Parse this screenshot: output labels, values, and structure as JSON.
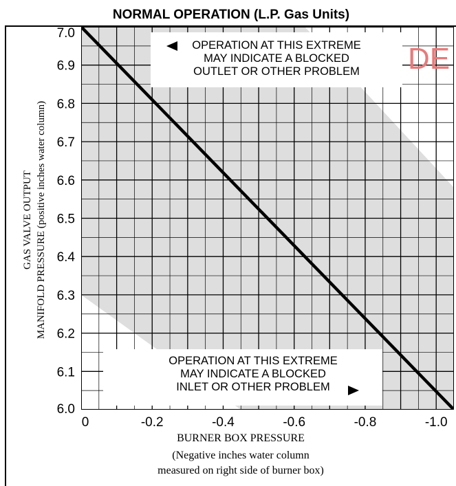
{
  "chart_data": {
    "type": "line",
    "title": "NORMAL OPERATION (L.P. Gas Units)",
    "xlabel": "BURNER BOX PRESSURE",
    "xlabel_sub": [
      "(Negative inches water column",
      "measured on right side of burner box)"
    ],
    "ylabel": [
      "GAS VALVE OUTPUT",
      "MANIFOLD PRESSURE (positive inches water column)"
    ],
    "xlim": [
      0,
      -1.05
    ],
    "ylim": [
      6.0,
      7.0
    ],
    "x_ticks": [
      "0",
      "-0.2",
      "-0.4",
      "-0.6",
      "-0.8",
      "-1.0"
    ],
    "x_tick_values": [
      0,
      -0.2,
      -0.4,
      -0.6,
      -0.8,
      -1.0
    ],
    "y_ticks": [
      "7.0",
      "6.9",
      "6.8",
      "6.7",
      "6.6",
      "6.5",
      "6.4",
      "6.3",
      "6.2",
      "6.1",
      "6.0"
    ],
    "y_tick_values": [
      7.0,
      6.9,
      6.8,
      6.7,
      6.6,
      6.5,
      6.4,
      6.3,
      6.2,
      6.1,
      6.0
    ],
    "grid": true,
    "series": [
      {
        "x": [
          0,
          -1.05
        ],
        "y": [
          7.0,
          6.0
        ]
      }
    ],
    "normal_band": {
      "upper": {
        "x": [
          0,
          -0.63,
          -1.05
        ],
        "y": [
          7.0,
          7.0,
          6.58
        ]
      },
      "lower": {
        "x": [
          0,
          0,
          -0.45,
          -1.05
        ],
        "y": [
          7.0,
          6.3,
          6.0,
          6.0
        ]
      }
    },
    "annotations": [
      {
        "lines": [
          "OPERATION AT THIS EXTREME",
          "MAY INDICATE A BLOCKED",
          "OUTLET OR OTHER PROBLEM"
        ],
        "arrow": "left",
        "position": "top-right"
      },
      {
        "lines": [
          "OPERATION AT THIS EXTREME",
          "MAY INDICATE A BLOCKED",
          "INLET OR OTHER PROBLEM"
        ],
        "arrow": "right",
        "position": "bottom-center"
      }
    ],
    "watermark": "DE",
    "colors": {
      "band": "#dedede",
      "line": "#000000",
      "grid": "#000000",
      "watermark": "#e87a7a"
    }
  }
}
